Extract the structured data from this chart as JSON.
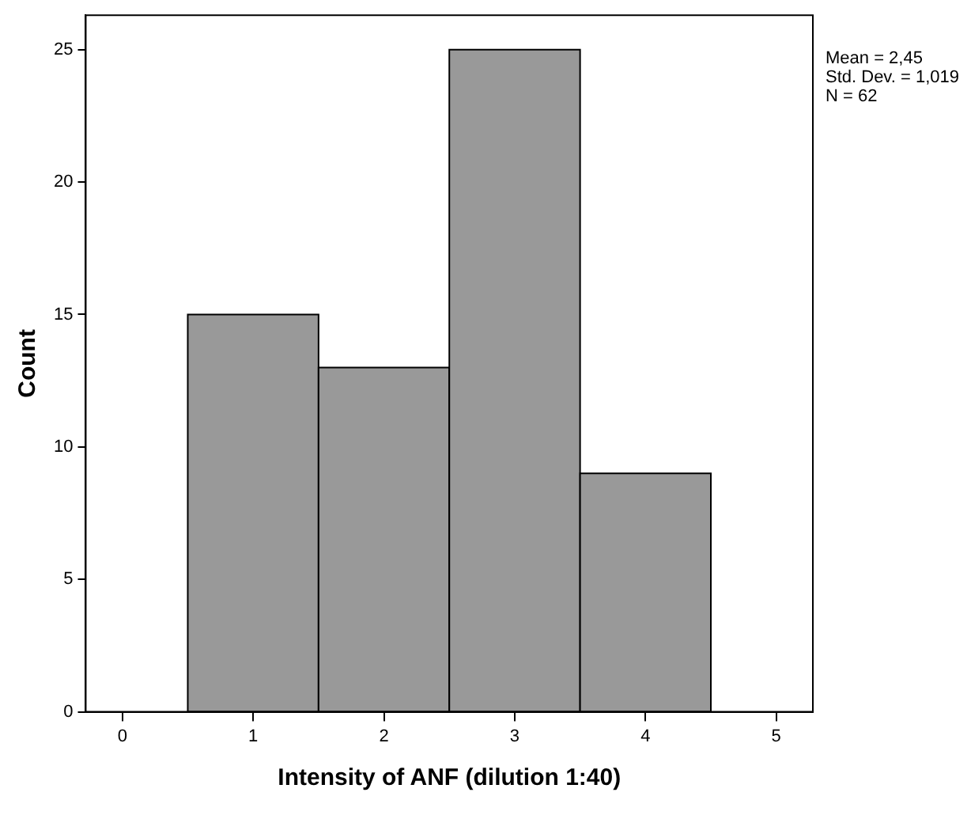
{
  "chart_data": {
    "type": "histogram",
    "xlabel": "Intensity of ANF (dilution 1:40)",
    "ylabel": "Count",
    "bins": [
      0.5,
      1.5,
      2.5,
      3.5,
      4.5
    ],
    "values": [
      15,
      13,
      25,
      9
    ],
    "color": "#999999",
    "xlim": [
      -0.28,
      5.28
    ],
    "xticks": [
      0,
      1,
      2,
      3,
      4,
      5
    ],
    "ylim": [
      0,
      26.3
    ],
    "yticks": [
      0,
      5,
      10,
      15,
      20,
      25
    ],
    "grid": false,
    "legend": false,
    "annotations": [
      "Mean = 2,45\nStd. Dev. = 1,019\nN = 62"
    ]
  }
}
